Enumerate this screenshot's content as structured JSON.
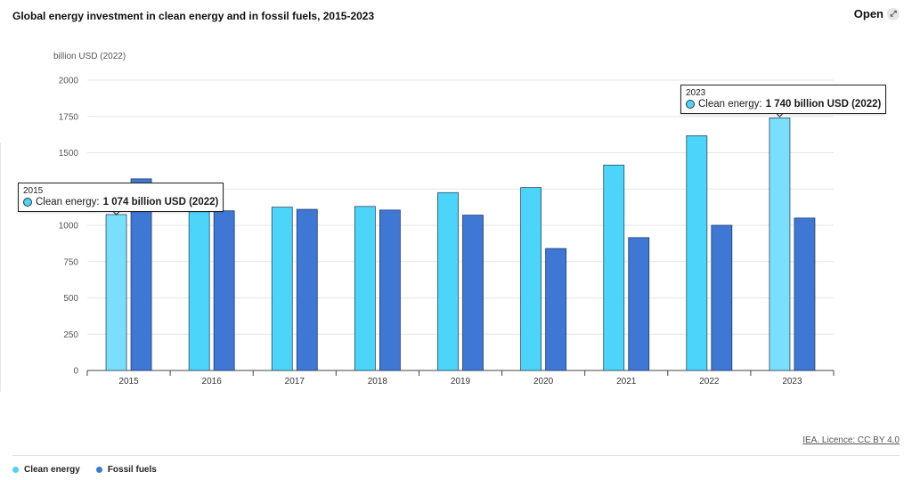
{
  "header": {
    "title": "Global energy investment in clean energy and in fossil fuels, 2015-2023",
    "open_label": "Open",
    "open_icon": "expand-icon"
  },
  "footer": {
    "licence": "IEA. Licence: CC BY 4.0"
  },
  "colors": {
    "clean": "#4dd4fb",
    "clean_highlight": "#7adffc",
    "fossil": "#3f78d4",
    "grid": "#e6e6e6",
    "axis": "#444444"
  },
  "chart_data": {
    "type": "bar",
    "title": "Global energy investment in clean energy and in fossil fuels, 2015-2023",
    "ylabel": "billion USD (2022)",
    "xlabel": "",
    "categories": [
      "2015",
      "2016",
      "2017",
      "2018",
      "2019",
      "2020",
      "2021",
      "2022",
      "2023"
    ],
    "ylim": [
      0,
      2000
    ],
    "yticks": [
      0,
      250,
      500,
      750,
      1000,
      1250,
      1500,
      1750,
      2000
    ],
    "grid": true,
    "legend_position": "bottom-left",
    "series": [
      {
        "name": "Clean energy",
        "values": [
          1074,
          1120,
          1125,
          1130,
          1225,
          1260,
          1415,
          1617,
          1740
        ]
      },
      {
        "name": "Fossil fuels",
        "values": [
          1320,
          1100,
          1110,
          1105,
          1070,
          840,
          915,
          1000,
          1050
        ]
      }
    ],
    "highlighted": [
      0,
      8
    ],
    "tooltips": [
      {
        "year": "2015",
        "label": "Clean energy:",
        "value": "1 074 billion USD (2022)"
      },
      {
        "year": "2023",
        "label": "Clean energy:",
        "value": "1 740 billion USD (2022)"
      }
    ]
  }
}
